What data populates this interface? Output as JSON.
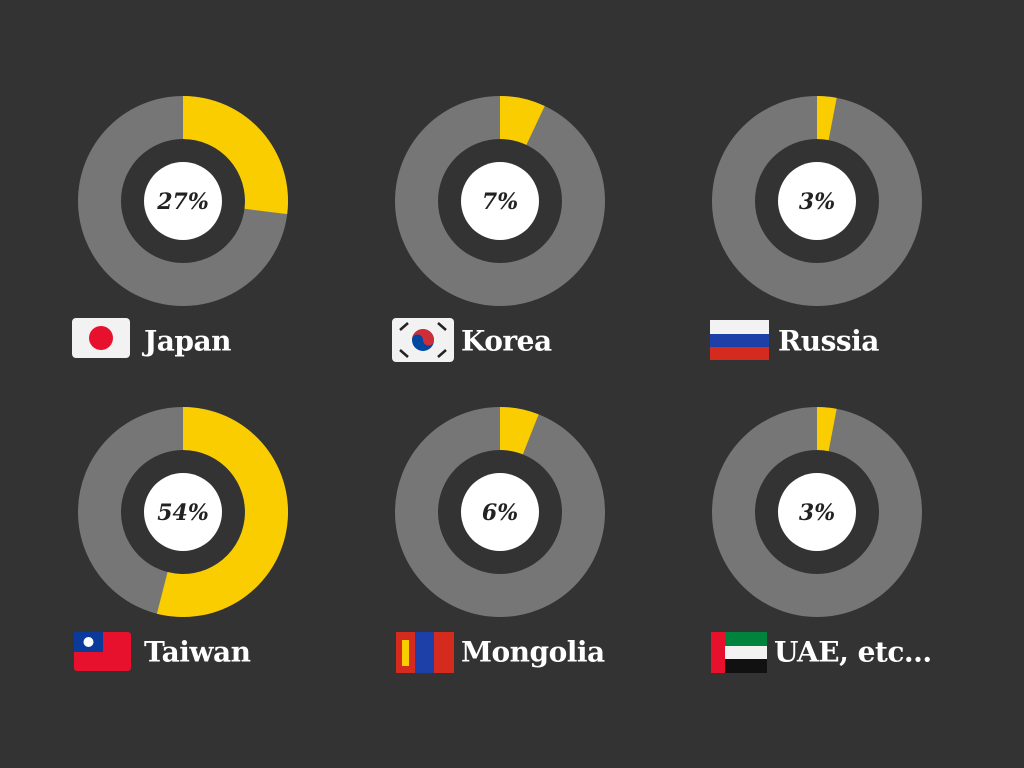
{
  "chart_data": [
    {
      "type": "donut",
      "categories": [
        "Japan"
      ],
      "values": [
        27
      ],
      "value_labels": [
        "27%"
      ],
      "color": "#f9cd00",
      "track_color": "#767676"
    },
    {
      "type": "donut",
      "categories": [
        "Korea"
      ],
      "values": [
        7
      ],
      "value_labels": [
        "7%"
      ],
      "color": "#f9cd00",
      "track_color": "#767676"
    },
    {
      "type": "donut",
      "categories": [
        "Russia"
      ],
      "values": [
        3
      ],
      "value_labels": [
        "3%"
      ],
      "color": "#f9cd00",
      "track_color": "#767676"
    },
    {
      "type": "donut",
      "categories": [
        "Taiwan"
      ],
      "values": [
        54
      ],
      "value_labels": [
        "54%"
      ],
      "color": "#f9cd00",
      "track_color": "#767676"
    },
    {
      "type": "donut",
      "categories": [
        "Mongolia"
      ],
      "values": [
        6
      ],
      "value_labels": [
        "6%"
      ],
      "color": "#f9cd00",
      "track_color": "#767676"
    },
    {
      "type": "donut",
      "categories": [
        "UAE, etc..."
      ],
      "values": [
        3
      ],
      "value_labels": [
        "3%"
      ],
      "color": "#f9cd00",
      "track_color": "#767676"
    }
  ]
}
